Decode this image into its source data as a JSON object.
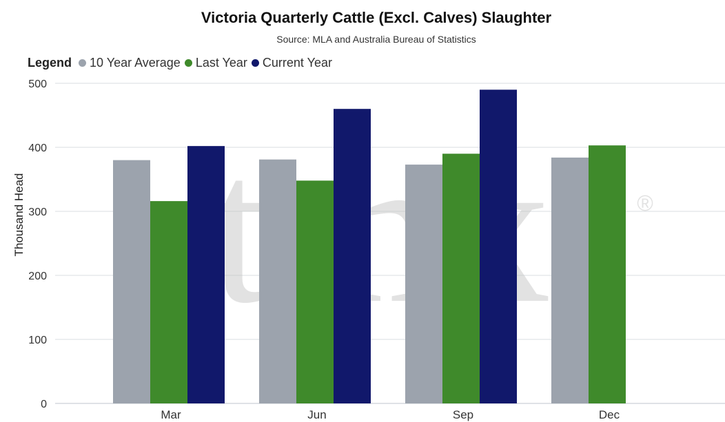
{
  "title": "Victoria Quarterly Cattle (Excl. Calves) Slaughter",
  "subtitle": "Source: MLA and Australia Bureau of Statistics",
  "legend": {
    "title": "Legend",
    "items": [
      {
        "label": "10 Year Average",
        "color": "#9ca3ad"
      },
      {
        "label": "Last Year",
        "color": "#3f8a2b"
      },
      {
        "label": "Current Year",
        "color": "#11186b"
      }
    ]
  },
  "watermark": {
    "text": "tmx",
    "mark": "®"
  },
  "chart_data": {
    "type": "bar",
    "title": "Victoria Quarterly Cattle (Excl. Calves) Slaughter",
    "subtitle": "Source: MLA and Australia Bureau of Statistics",
    "xlabel": "",
    "ylabel": "Thousand Head",
    "categories": [
      "Mar",
      "Jun",
      "Sep",
      "Dec"
    ],
    "ylim": [
      0,
      500
    ],
    "yticks": [
      0,
      100,
      200,
      300,
      400,
      500
    ],
    "grid": true,
    "legend_position": "top-left",
    "series": [
      {
        "name": "10 Year Average",
        "color": "#9ca3ad",
        "values": [
          380,
          381,
          373,
          384
        ]
      },
      {
        "name": "Last Year",
        "color": "#3f8a2b",
        "values": [
          316,
          348,
          390,
          403
        ]
      },
      {
        "name": "Current Year",
        "color": "#11186b",
        "values": [
          402,
          460,
          490,
          null
        ]
      }
    ]
  }
}
